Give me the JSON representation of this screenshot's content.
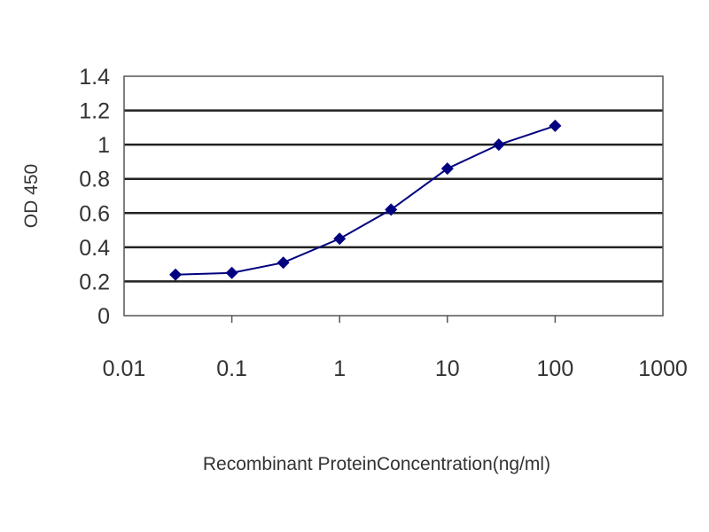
{
  "chart_data": {
    "type": "line",
    "title": "",
    "xlabel": "Recombinant ProteinConcentration(ng/ml)",
    "ylabel": "OD 450",
    "x_scale": "log",
    "xlim": [
      0.01,
      1000
    ],
    "ylim": [
      0,
      1.4
    ],
    "x_ticks": [
      "0.01",
      "0.1",
      "1",
      "10",
      "100",
      "1000"
    ],
    "y_ticks": [
      "0",
      "0.2",
      "0.4",
      "0.6",
      "0.8",
      "1",
      "1.2",
      "1.4"
    ],
    "grid": "horizontal",
    "legend": "none",
    "series": [
      {
        "x": [
          0.03,
          0.1,
          0.3,
          1,
          3,
          10,
          30,
          100
        ],
        "y": [
          0.24,
          0.25,
          0.31,
          0.45,
          0.62,
          0.86,
          1.0,
          1.11
        ],
        "color": "#000080",
        "marker": "diamond"
      }
    ]
  }
}
